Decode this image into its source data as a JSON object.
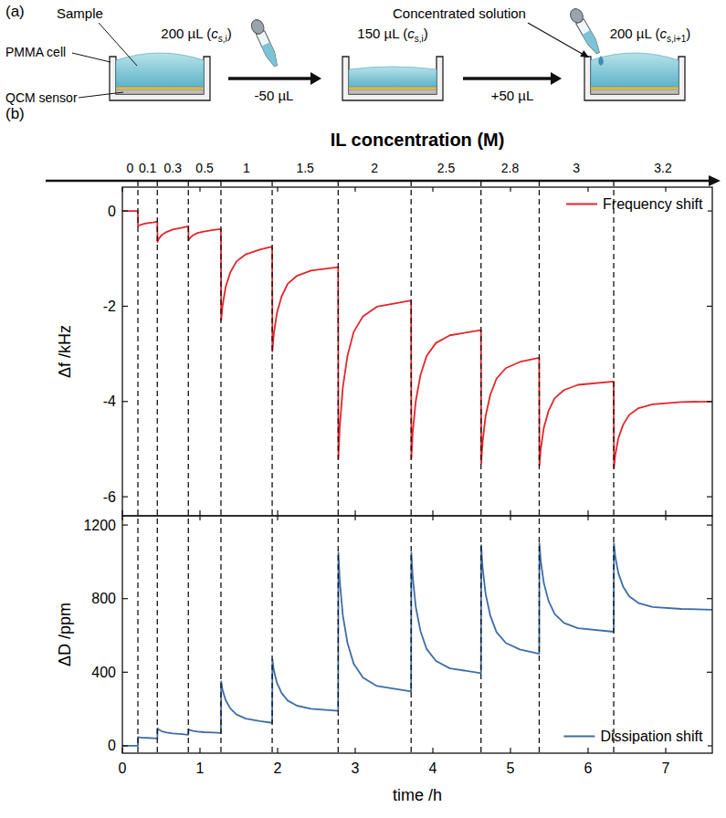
{
  "panel_a": {
    "letter": "(a)",
    "sample_label": "Sample",
    "cell_label": "PMMA cell",
    "sensor_label": "QCM sensor",
    "cells": [
      {
        "pre": "200 µL (",
        "symbol": "c",
        "sub": "s,i",
        "post": ")"
      },
      {
        "pre": "150 µL (",
        "symbol": "c",
        "sub": "s,i",
        "post": ")"
      },
      {
        "pre": "200 µL (",
        "symbol": "c",
        "sub": "s,i+1",
        "post": ")"
      }
    ],
    "steps": [
      "-50 µL",
      "+50 µL"
    ],
    "solution_label": "Concentrated solution"
  },
  "panel_b": {
    "letter": "(b)"
  },
  "concentration_axis": {
    "title": "IL concentration (M)",
    "step_times": [
      0.2,
      0.45,
      0.85,
      1.27,
      1.93,
      2.78,
      3.72,
      4.62,
      5.37,
      6.33
    ],
    "labels": [
      0,
      0.1,
      0.3,
      0.5,
      1,
      1.5,
      2,
      2.5,
      2.8,
      3,
      3.2
    ]
  },
  "chart_data": [
    {
      "type": "line",
      "y_label": "Δf /kHz",
      "x": [
        0,
        0.2,
        0.203,
        0.22,
        0.26,
        0.32,
        0.4,
        0.45,
        0.453,
        0.47,
        0.51,
        0.57,
        0.65,
        0.77,
        0.85,
        0.853,
        0.87,
        0.91,
        0.97,
        1.05,
        1.17,
        1.27,
        1.273,
        1.29,
        1.33,
        1.39,
        1.47,
        1.59,
        1.77,
        1.93,
        1.933,
        1.95,
        1.99,
        2.05,
        2.13,
        2.25,
        2.43,
        2.78,
        2.783,
        2.8,
        2.84,
        2.9,
        2.98,
        3.1,
        3.28,
        3.72,
        3.723,
        3.74,
        3.78,
        3.84,
        3.92,
        4.04,
        4.22,
        4.62,
        4.623,
        4.64,
        4.68,
        4.74,
        4.82,
        4.94,
        5.12,
        5.37,
        5.373,
        5.39,
        5.43,
        5.49,
        5.57,
        5.69,
        5.87,
        6.33,
        6.333,
        6.35,
        6.39,
        6.45,
        6.53,
        6.65,
        6.83,
        7.2,
        7.6
      ],
      "xlim": [
        0,
        7.6
      ],
      "xticks": [
        0,
        1,
        2,
        3,
        4,
        5,
        6,
        7
      ],
      "ylim": [
        -6.4,
        0.5
      ],
      "yticks": [
        0,
        -2,
        -4,
        -6
      ],
      "tick_labels": "y",
      "legend": "top-right",
      "series": [
        {
          "name": "Frequency shift",
          "color": "#e4252b",
          "values": [
            0,
            0,
            -0.32,
            -0.3,
            -0.28,
            -0.255,
            -0.24,
            -0.22,
            -0.65,
            -0.58,
            -0.5,
            -0.44,
            -0.39,
            -0.35,
            -0.32,
            -0.62,
            -0.57,
            -0.51,
            -0.46,
            -0.43,
            -0.4,
            -0.38,
            -2.3,
            -2.0,
            -1.6,
            -1.29,
            -1.06,
            -0.91,
            -0.81,
            -0.75,
            -2.95,
            -2.6,
            -2.15,
            -1.8,
            -1.53,
            -1.36,
            -1.25,
            -1.18,
            -5.2,
            -4.54,
            -3.71,
            -3.04,
            -2.54,
            -2.21,
            -2.01,
            -1.88,
            -5.2,
            -4.66,
            -3.99,
            -3.45,
            -3.04,
            -2.77,
            -2.61,
            -2.5,
            -5.3,
            -4.86,
            -4.3,
            -3.86,
            -3.52,
            -3.3,
            -3.17,
            -3.08,
            -5.35,
            -5.0,
            -4.55,
            -4.2,
            -3.93,
            -3.76,
            -3.65,
            -3.58,
            -5.4,
            -5.12,
            -4.77,
            -4.49,
            -4.28,
            -4.14,
            -4.06,
            -4.01,
            -4.0
          ]
        }
      ]
    },
    {
      "type": "line",
      "x_label": "time /h",
      "y_label": "ΔD /ppm",
      "x": [
        0,
        0.2,
        0.203,
        0.22,
        0.26,
        0.32,
        0.4,
        0.45,
        0.453,
        0.47,
        0.51,
        0.57,
        0.65,
        0.77,
        0.85,
        0.853,
        0.87,
        0.91,
        0.97,
        1.05,
        1.17,
        1.27,
        1.273,
        1.29,
        1.33,
        1.39,
        1.47,
        1.59,
        1.77,
        1.93,
        1.933,
        1.95,
        1.99,
        2.05,
        2.13,
        2.25,
        2.43,
        2.78,
        2.783,
        2.8,
        2.84,
        2.9,
        2.98,
        3.1,
        3.28,
        3.72,
        3.723,
        3.74,
        3.78,
        3.84,
        3.92,
        4.04,
        4.22,
        4.62,
        4.623,
        4.64,
        4.68,
        4.74,
        4.82,
        4.94,
        5.12,
        5.37,
        5.373,
        5.39,
        5.43,
        5.49,
        5.57,
        5.69,
        5.87,
        6.33,
        6.333,
        6.35,
        6.39,
        6.45,
        6.53,
        6.65,
        6.83,
        7.2,
        7.6
      ],
      "xlim": [
        0,
        7.6
      ],
      "xticks": [
        0,
        1,
        2,
        3,
        4,
        5,
        6,
        7
      ],
      "ylim": [
        -40,
        1250
      ],
      "yticks": [
        0,
        400,
        800,
        1200
      ],
      "legend": "bottom-right",
      "series": [
        {
          "name": "Dissipation shift",
          "color": "#3e6da6",
          "values": [
            0,
            0,
            48,
            46,
            44,
            43,
            41,
            40,
            95,
            88,
            79,
            72,
            67,
            64,
            60,
            90,
            86,
            81,
            77,
            74,
            72,
            70,
            350,
            305,
            249,
            204,
            170,
            148,
            134,
            125,
            470,
            414,
            344,
            288,
            246,
            218,
            201,
            190,
            1050,
            899,
            710,
            559,
            446,
            371,
            325,
            295,
            1050,
            919,
            755,
            624,
            526,
            461,
            421,
            395,
            1090,
            972,
            825,
            707,
            618,
            559,
            524,
            500,
            1100,
            1004,
            884,
            788,
            716,
            668,
            639,
            620,
            1100,
            1028,
            938,
            866,
            812,
            776,
            754,
            744,
            740
          ]
        }
      ]
    }
  ]
}
